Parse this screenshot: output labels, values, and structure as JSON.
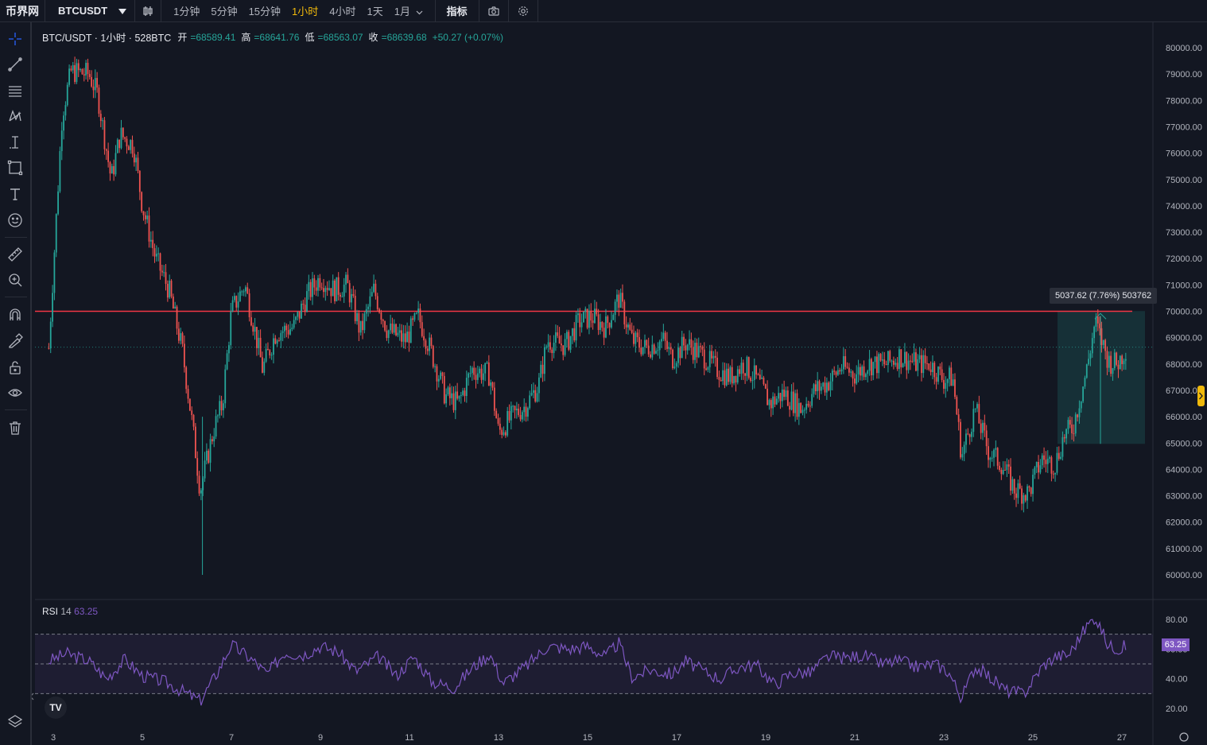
{
  "topbar": {
    "logo": "币界网",
    "symbol": "BTCUSDT",
    "intervals": [
      {
        "label": "1分钟",
        "active": false
      },
      {
        "label": "5分钟",
        "active": false
      },
      {
        "label": "15分钟",
        "active": false
      },
      {
        "label": "1小时",
        "active": true
      },
      {
        "label": "4小时",
        "active": false
      },
      {
        "label": "1天",
        "active": false
      },
      {
        "label": "1月",
        "active": false
      }
    ],
    "indicators_label": "指标"
  },
  "legend": {
    "title": "BTC/USDT · 1小时 · 528BTC",
    "open_label": "开",
    "open": "=68589.41",
    "high_label": "高",
    "high": "=68641.76",
    "low_label": "低",
    "low": "=68563.07",
    "close_label": "收",
    "close": "=68639.68",
    "change": "+50.27 (+0.07%)"
  },
  "price_axis_labels": [
    "80000.00",
    "79000.00",
    "78000.00",
    "77000.00",
    "76000.00",
    "75000.00",
    "74000.00",
    "73000.00",
    "72000.00",
    "71000.00",
    "70000.00",
    "69000.00",
    "68000.00",
    "67000.00",
    "66000.00",
    "65000.00",
    "64000.00",
    "63000.00",
    "62000.00",
    "61000.00",
    "60000.00"
  ],
  "time_axis_labels": [
    "3",
    "5",
    "7",
    "9",
    "11",
    "13",
    "15",
    "17",
    "19",
    "21",
    "23",
    "25",
    "27"
  ],
  "rsi": {
    "label": "RSI",
    "period": "14",
    "value": "63.25",
    "axis_labels": [
      "80.00",
      "60.00",
      "40.00",
      "20.00"
    ]
  },
  "measure_tooltip": "5037.62 (7.76%) 503762",
  "horizontal_line_price": 70000,
  "current_price": 68639.68,
  "colors": {
    "up": "#26a69a",
    "down": "#ef5350",
    "line": "#f23645",
    "rsi": "#7e57c2",
    "bg": "#131722"
  },
  "chart_data": {
    "type": "candlestick",
    "x_ticks": [
      "3",
      "5",
      "7",
      "9",
      "11",
      "13",
      "15",
      "17",
      "19",
      "21",
      "23",
      "25",
      "27"
    ],
    "ylim": [
      60000,
      80000
    ],
    "close_path": [
      {
        "day": 2.9,
        "close": 68600
      },
      {
        "day": 3.2,
        "close": 77500
      },
      {
        "day": 3.4,
        "close": 79100
      },
      {
        "day": 3.8,
        "close": 79000
      },
      {
        "day": 4.0,
        "close": 78200
      },
      {
        "day": 4.3,
        "close": 75000
      },
      {
        "day": 4.5,
        "close": 76700
      },
      {
        "day": 4.8,
        "close": 76300
      },
      {
        "day": 5.0,
        "close": 74000
      },
      {
        "day": 5.3,
        "close": 72000
      },
      {
        "day": 5.6,
        "close": 70800
      },
      {
        "day": 5.9,
        "close": 68500
      },
      {
        "day": 6.1,
        "close": 66000
      },
      {
        "day": 6.3,
        "close": 63200
      },
      {
        "day": 6.6,
        "close": 65500
      },
      {
        "day": 6.8,
        "close": 66500
      },
      {
        "day": 7.0,
        "close": 70000
      },
      {
        "day": 7.3,
        "close": 71000
      },
      {
        "day": 7.5,
        "close": 69500
      },
      {
        "day": 7.7,
        "close": 67800
      },
      {
        "day": 8.0,
        "close": 69200
      },
      {
        "day": 8.4,
        "close": 69400
      },
      {
        "day": 8.7,
        "close": 70600
      },
      {
        "day": 9.0,
        "close": 71300
      },
      {
        "day": 9.3,
        "close": 70800
      },
      {
        "day": 9.6,
        "close": 71000
      },
      {
        "day": 9.9,
        "close": 69200
      },
      {
        "day": 10.2,
        "close": 70800
      },
      {
        "day": 10.5,
        "close": 69300
      },
      {
        "day": 10.9,
        "close": 68900
      },
      {
        "day": 11.2,
        "close": 69800
      },
      {
        "day": 11.5,
        "close": 68400
      },
      {
        "day": 11.8,
        "close": 66800
      },
      {
        "day": 12.1,
        "close": 66500
      },
      {
        "day": 12.4,
        "close": 67800
      },
      {
        "day": 12.8,
        "close": 67600
      },
      {
        "day": 13.0,
        "close": 65400
      },
      {
        "day": 13.3,
        "close": 66000
      },
      {
        "day": 13.6,
        "close": 66400
      },
      {
        "day": 13.9,
        "close": 67200
      },
      {
        "day": 14.1,
        "close": 68900
      },
      {
        "day": 14.5,
        "close": 68700
      },
      {
        "day": 14.8,
        "close": 69600
      },
      {
        "day": 15.1,
        "close": 69800
      },
      {
        "day": 15.4,
        "close": 69400
      },
      {
        "day": 15.7,
        "close": 70500
      },
      {
        "day": 16.0,
        "close": 68900
      },
      {
        "day": 16.3,
        "close": 68600
      },
      {
        "day": 16.7,
        "close": 68900
      },
      {
        "day": 16.9,
        "close": 68200
      },
      {
        "day": 17.2,
        "close": 68800
      },
      {
        "day": 17.6,
        "close": 68300
      },
      {
        "day": 17.9,
        "close": 67800
      },
      {
        "day": 18.2,
        "close": 67500
      },
      {
        "day": 18.5,
        "close": 68000
      },
      {
        "day": 18.8,
        "close": 67400
      },
      {
        "day": 19.1,
        "close": 66500
      },
      {
        "day": 19.4,
        "close": 66900
      },
      {
        "day": 19.8,
        "close": 66300
      },
      {
        "day": 20.1,
        "close": 67000
      },
      {
        "day": 20.4,
        "close": 67300
      },
      {
        "day": 20.7,
        "close": 67900
      },
      {
        "day": 21.0,
        "close": 67600
      },
      {
        "day": 21.3,
        "close": 68000
      },
      {
        "day": 21.7,
        "close": 68000
      },
      {
        "day": 22.0,
        "close": 68300
      },
      {
        "day": 22.4,
        "close": 68000
      },
      {
        "day": 22.7,
        "close": 68000
      },
      {
        "day": 23.0,
        "close": 67400
      },
      {
        "day": 23.2,
        "close": 67500
      },
      {
        "day": 23.4,
        "close": 64500
      },
      {
        "day": 23.7,
        "close": 66300
      },
      {
        "day": 24.0,
        "close": 64700
      },
      {
        "day": 24.3,
        "close": 64200
      },
      {
        "day": 24.6,
        "close": 63200
      },
      {
        "day": 24.9,
        "close": 63100
      },
      {
        "day": 25.2,
        "close": 64400
      },
      {
        "day": 25.5,
        "close": 64200
      },
      {
        "day": 25.7,
        "close": 65300
      },
      {
        "day": 25.9,
        "close": 65600
      },
      {
        "day": 26.2,
        "close": 67700
      },
      {
        "day": 26.4,
        "close": 69600
      },
      {
        "day": 26.7,
        "close": 68100
      },
      {
        "day": 26.9,
        "close": 68000
      },
      {
        "day": 27.1,
        "close": 68640
      }
    ],
    "rsi_path": [
      {
        "day": 2.9,
        "rsi": 52
      },
      {
        "day": 3.3,
        "rsi": 57
      },
      {
        "day": 3.8,
        "rsi": 52
      },
      {
        "day": 4.2,
        "rsi": 40
      },
      {
        "day": 4.6,
        "rsi": 53
      },
      {
        "day": 5.0,
        "rsi": 42
      },
      {
        "day": 5.5,
        "rsi": 38
      },
      {
        "day": 6.0,
        "rsi": 30
      },
      {
        "day": 6.3,
        "rsi": 25
      },
      {
        "day": 6.7,
        "rsi": 45
      },
      {
        "day": 7.0,
        "rsi": 63
      },
      {
        "day": 7.5,
        "rsi": 52
      },
      {
        "day": 7.8,
        "rsi": 43
      },
      {
        "day": 8.2,
        "rsi": 58
      },
      {
        "day": 8.6,
        "rsi": 56
      },
      {
        "day": 9.0,
        "rsi": 62
      },
      {
        "day": 9.4,
        "rsi": 58
      },
      {
        "day": 9.8,
        "rsi": 45
      },
      {
        "day": 10.3,
        "rsi": 55
      },
      {
        "day": 10.7,
        "rsi": 42
      },
      {
        "day": 11.1,
        "rsi": 55
      },
      {
        "day": 11.5,
        "rsi": 38
      },
      {
        "day": 12.0,
        "rsi": 34
      },
      {
        "day": 12.4,
        "rsi": 47
      },
      {
        "day": 12.8,
        "rsi": 57
      },
      {
        "day": 13.1,
        "rsi": 37
      },
      {
        "day": 13.6,
        "rsi": 48
      },
      {
        "day": 14.1,
        "rsi": 62
      },
      {
        "day": 14.6,
        "rsi": 60
      },
      {
        "day": 15.0,
        "rsi": 62
      },
      {
        "day": 15.4,
        "rsi": 55
      },
      {
        "day": 15.7,
        "rsi": 64
      },
      {
        "day": 16.0,
        "rsi": 41
      },
      {
        "day": 16.4,
        "rsi": 46
      },
      {
        "day": 16.9,
        "rsi": 43
      },
      {
        "day": 17.2,
        "rsi": 52
      },
      {
        "day": 17.6,
        "rsi": 45
      },
      {
        "day": 18.0,
        "rsi": 40
      },
      {
        "day": 18.4,
        "rsi": 48
      },
      {
        "day": 18.8,
        "rsi": 49
      },
      {
        "day": 19.2,
        "rsi": 36
      },
      {
        "day": 19.6,
        "rsi": 44
      },
      {
        "day": 20.0,
        "rsi": 44
      },
      {
        "day": 20.4,
        "rsi": 55
      },
      {
        "day": 20.8,
        "rsi": 54
      },
      {
        "day": 21.2,
        "rsi": 56
      },
      {
        "day": 21.6,
        "rsi": 50
      },
      {
        "day": 22.0,
        "rsi": 52
      },
      {
        "day": 22.4,
        "rsi": 48
      },
      {
        "day": 22.8,
        "rsi": 50
      },
      {
        "day": 23.1,
        "rsi": 45
      },
      {
        "day": 23.4,
        "rsi": 27
      },
      {
        "day": 23.7,
        "rsi": 48
      },
      {
        "day": 24.0,
        "rsi": 42
      },
      {
        "day": 24.4,
        "rsi": 32
      },
      {
        "day": 24.8,
        "rsi": 30
      },
      {
        "day": 25.2,
        "rsi": 48
      },
      {
        "day": 25.5,
        "rsi": 55
      },
      {
        "day": 25.8,
        "rsi": 56
      },
      {
        "day": 26.2,
        "rsi": 75
      },
      {
        "day": 26.4,
        "rsi": 82
      },
      {
        "day": 26.7,
        "rsi": 62
      },
      {
        "day": 27.0,
        "rsi": 60
      },
      {
        "day": 27.1,
        "rsi": 63.25
      }
    ],
    "rsi_levels": [
      70,
      50,
      30
    ],
    "measure": {
      "from_price": 64970,
      "to_price": 70007,
      "change": "5037.62 (7.76%) 503762"
    }
  }
}
